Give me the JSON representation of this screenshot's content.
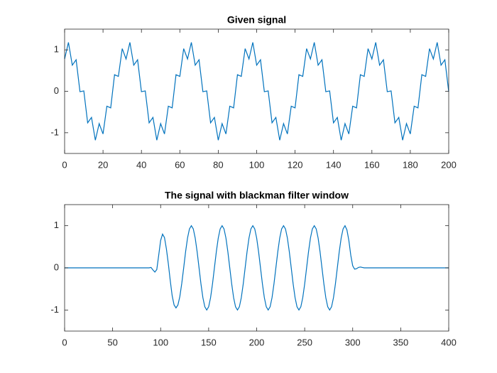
{
  "chart_data": [
    {
      "type": "line",
      "title": "Given signal",
      "color": "#0072bd",
      "x": [
        0,
        2,
        4,
        6,
        8,
        10,
        12,
        14,
        16,
        18,
        20,
        22,
        24,
        26,
        28,
        30,
        32,
        34,
        36,
        38,
        40,
        42,
        44,
        46,
        48,
        50,
        52,
        54,
        56,
        58,
        60,
        62,
        64,
        66,
        68,
        70,
        72,
        74,
        76,
        78,
        80,
        82,
        84,
        86,
        88,
        90,
        92,
        94,
        96,
        98,
        100,
        102,
        104,
        106,
        108,
        110,
        112,
        114,
        116,
        118,
        120,
        122,
        124,
        126,
        128,
        130,
        132,
        134,
        136,
        138,
        140,
        142,
        144,
        146,
        148,
        150,
        152,
        154,
        156,
        158,
        160,
        162,
        164,
        166,
        168,
        170,
        172,
        174,
        176,
        178,
        180,
        182,
        184,
        186,
        188,
        190,
        192,
        194,
        196,
        198,
        200
      ],
      "values": [
        0.78,
        1.18,
        0.63,
        0.76,
        -0.01,
        0.01,
        -0.76,
        -0.63,
        -1.18,
        -0.78,
        -1.03,
        -0.36,
        -0.4,
        0.4,
        0.36,
        1.03,
        0.78,
        1.18,
        0.63,
        0.76,
        -0.01,
        0.01,
        -0.76,
        -0.63,
        -1.18,
        -0.78,
        -1.03,
        -0.36,
        -0.4,
        0.4,
        0.36,
        1.03,
        0.78,
        1.18,
        0.63,
        0.76,
        -0.01,
        0.01,
        -0.76,
        -0.63,
        -1.18,
        -0.78,
        -1.03,
        -0.36,
        -0.4,
        0.4,
        0.36,
        1.03,
        0.78,
        1.18,
        0.63,
        0.76,
        -0.01,
        0.01,
        -0.76,
        -0.63,
        -1.18,
        -0.78,
        -1.03,
        -0.36,
        -0.4,
        0.4,
        0.36,
        1.03,
        0.78,
        1.18,
        0.63,
        0.76,
        -0.01,
        0.01,
        -0.76,
        -0.63,
        -1.18,
        -0.78,
        -1.03,
        -0.36,
        -0.4,
        0.4,
        0.36,
        1.03,
        0.78,
        1.18,
        0.63,
        0.76,
        -0.01,
        0.01,
        -0.76,
        -0.63,
        -1.18,
        -0.78,
        -1.03,
        -0.36,
        -0.4,
        0.4,
        0.36,
        1.03,
        0.78,
        1.18,
        0.63,
        0.76,
        -0.01
      ],
      "xlim": [
        0,
        200
      ],
      "xticks": [
        0,
        20,
        40,
        60,
        80,
        100,
        120,
        140,
        160,
        180,
        200
      ],
      "ylim": [
        -1.5,
        1.5
      ],
      "yticks": [
        -1,
        0,
        1
      ]
    },
    {
      "type": "line",
      "title": "The signal with blackman filter window",
      "color": "#0072bd",
      "x": [
        0,
        2,
        4,
        6,
        8,
        10,
        12,
        14,
        16,
        18,
        20,
        22,
        24,
        26,
        28,
        30,
        32,
        34,
        36,
        38,
        40,
        42,
        44,
        46,
        48,
        50,
        52,
        54,
        56,
        58,
        60,
        62,
        64,
        66,
        68,
        70,
        72,
        74,
        76,
        78,
        80,
        82,
        84,
        86,
        88,
        90,
        92,
        94,
        96,
        98,
        100,
        102,
        104,
        106,
        108,
        110,
        112,
        114,
        116,
        118,
        120,
        122,
        124,
        126,
        128,
        130,
        132,
        134,
        136,
        138,
        140,
        142,
        144,
        146,
        148,
        150,
        152,
        154,
        156,
        158,
        160,
        162,
        164,
        166,
        168,
        170,
        172,
        174,
        176,
        178,
        180,
        182,
        184,
        186,
        188,
        190,
        192,
        194,
        196,
        198,
        200,
        202,
        204,
        206,
        208,
        210,
        212,
        214,
        216,
        218,
        220,
        222,
        224,
        226,
        228,
        230,
        232,
        234,
        236,
        238,
        240,
        242,
        244,
        246,
        248,
        250,
        252,
        254,
        256,
        258,
        260,
        262,
        264,
        266,
        268,
        270,
        272,
        274,
        276,
        278,
        280,
        282,
        284,
        286,
        288,
        290,
        292,
        294,
        296,
        298,
        300,
        302,
        304,
        306,
        308,
        310,
        312,
        314,
        316,
        318,
        320,
        322,
        324,
        326,
        328,
        330,
        332,
        334,
        336,
        338,
        340,
        342,
        344,
        346,
        348,
        350,
        352,
        354,
        356,
        358,
        360,
        362,
        364,
        366,
        368,
        370,
        372,
        374,
        376,
        378,
        380,
        382,
        384,
        386,
        388,
        390,
        392,
        394,
        396,
        398,
        400
      ],
      "values": [
        0,
        0,
        0,
        0,
        0,
        0,
        0,
        0,
        0,
        0,
        0,
        0,
        0,
        0,
        0,
        0,
        0,
        0,
        0,
        0,
        0,
        0,
        0,
        0,
        0,
        0,
        0,
        0,
        0,
        0,
        0,
        0,
        0,
        0,
        0,
        0,
        0,
        0,
        0,
        0,
        0,
        0,
        0,
        0,
        0,
        0.01,
        -0.05,
        -0.1,
        -0.04,
        0.3,
        0.65,
        0.8,
        0.72,
        0.45,
        0.1,
        -0.3,
        -0.66,
        -0.88,
        -0.95,
        -0.88,
        -0.68,
        -0.37,
        0,
        0.383,
        0.707,
        0.924,
        1,
        0.924,
        0.707,
        0.383,
        0,
        -0.383,
        -0.707,
        -0.924,
        -1,
        -0.924,
        -0.707,
        -0.383,
        0,
        0.383,
        0.707,
        0.924,
        1,
        0.924,
        0.707,
        0.383,
        0,
        -0.383,
        -0.707,
        -0.924,
        -1,
        -0.924,
        -0.707,
        -0.383,
        0,
        0.383,
        0.707,
        0.924,
        1,
        0.924,
        0.707,
        0.383,
        0,
        -0.383,
        -0.707,
        -0.924,
        -1,
        -0.924,
        -0.707,
        -0.383,
        0,
        0.383,
        0.707,
        0.924,
        1,
        0.924,
        0.707,
        0.383,
        0,
        -0.383,
        -0.707,
        -0.924,
        -1,
        -0.924,
        -0.707,
        -0.383,
        0,
        0.383,
        0.707,
        0.924,
        1,
        0.924,
        0.707,
        0.383,
        0,
        -0.383,
        -0.707,
        -0.924,
        -1,
        -0.924,
        -0.707,
        -0.383,
        0,
        0.383,
        0.707,
        0.924,
        1,
        0.9,
        0.65,
        0.3,
        0.05,
        -0.03,
        -0.02,
        0.01,
        0.02,
        0.01,
        0,
        0,
        0,
        0,
        0,
        0,
        0,
        0,
        0,
        0,
        0,
        0,
        0,
        0,
        0,
        0,
        0,
        0,
        0,
        0,
        0,
        0,
        0,
        0,
        0,
        0,
        0,
        0,
        0,
        0,
        0,
        0,
        0,
        0,
        0,
        0,
        0,
        0,
        0,
        0,
        0,
        0,
        0,
        0,
        0
      ],
      "xlim": [
        0,
        400
      ],
      "xticks": [
        0,
        50,
        100,
        150,
        200,
        250,
        300,
        350,
        400
      ],
      "ylim": [
        -1.5,
        1.5
      ],
      "yticks": [
        -1,
        0,
        1
      ]
    }
  ]
}
